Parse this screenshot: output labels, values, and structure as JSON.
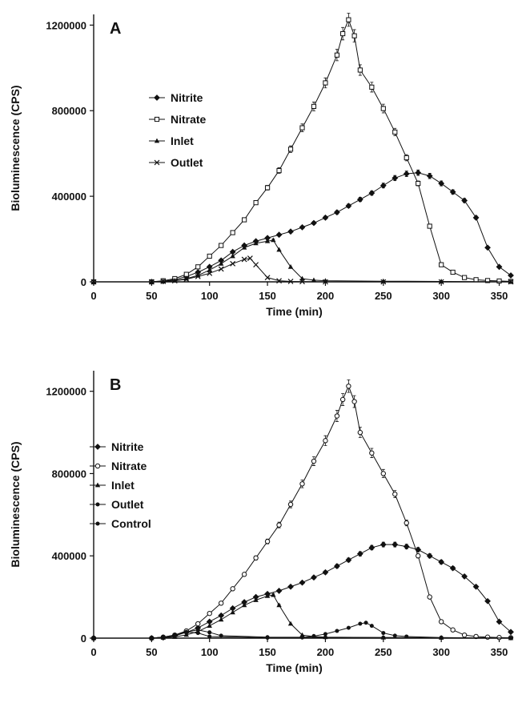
{
  "colors": {
    "ink": "#111111",
    "background": "#ffffff"
  },
  "chart_data": [
    {
      "type": "line",
      "panel_label": "A",
      "xlabel": "Time (min)",
      "ylabel": "Bioluminescence (CPS)",
      "xlim": [
        0,
        360
      ],
      "ylim": [
        0,
        1250000
      ],
      "xticks": [
        0,
        50,
        100,
        150,
        200,
        250,
        300,
        350
      ],
      "yticks": [
        0,
        400000,
        800000,
        1200000
      ],
      "grid": false,
      "legend_position": "top-left",
      "series": [
        {
          "name": "Nitrite",
          "marker": "filled-diamond",
          "x": [
            0,
            50,
            60,
            70,
            80,
            90,
            100,
            110,
            120,
            130,
            140,
            150,
            160,
            170,
            180,
            190,
            200,
            210,
            220,
            230,
            240,
            250,
            260,
            270,
            280,
            290,
            300,
            310,
            320,
            330,
            340,
            350,
            360
          ],
          "y": [
            0,
            0,
            3000,
            10000,
            25000,
            45000,
            70000,
            100000,
            140000,
            170000,
            190000,
            205000,
            220000,
            235000,
            255000,
            275000,
            300000,
            325000,
            355000,
            385000,
            415000,
            450000,
            485000,
            505000,
            510000,
            495000,
            460000,
            420000,
            380000,
            300000,
            160000,
            70000,
            30000
          ]
        },
        {
          "name": "Nitrate",
          "marker": "open-square",
          "x": [
            0,
            50,
            60,
            70,
            80,
            90,
            100,
            110,
            120,
            130,
            140,
            150,
            160,
            170,
            180,
            190,
            200,
            210,
            215,
            220,
            225,
            230,
            240,
            250,
            260,
            270,
            280,
            290,
            300,
            310,
            320,
            330,
            340,
            350,
            360
          ],
          "y": [
            0,
            0,
            5000,
            15000,
            35000,
            70000,
            120000,
            170000,
            230000,
            290000,
            370000,
            440000,
            520000,
            620000,
            720000,
            820000,
            930000,
            1060000,
            1160000,
            1225000,
            1150000,
            990000,
            910000,
            810000,
            700000,
            580000,
            460000,
            260000,
            80000,
            45000,
            20000,
            10000,
            6000,
            4000,
            2000
          ]
        },
        {
          "name": "Inlet",
          "marker": "filled-triangle",
          "x": [
            0,
            50,
            60,
            70,
            80,
            90,
            100,
            110,
            120,
            130,
            140,
            150,
            155,
            160,
            170,
            180,
            190,
            200,
            250,
            300,
            360
          ],
          "y": [
            0,
            0,
            2000,
            6000,
            15000,
            30000,
            55000,
            85000,
            120000,
            160000,
            180000,
            190000,
            195000,
            150000,
            70000,
            15000,
            8000,
            5000,
            3000,
            2000,
            0
          ]
        },
        {
          "name": "Outlet",
          "marker": "cross",
          "x": [
            0,
            50,
            60,
            70,
            80,
            90,
            100,
            110,
            120,
            130,
            135,
            140,
            150,
            160,
            170,
            180,
            200,
            250,
            300,
            360
          ],
          "y": [
            0,
            0,
            2000,
            5000,
            12000,
            25000,
            40000,
            60000,
            85000,
            105000,
            110000,
            80000,
            20000,
            5000,
            2000,
            1000,
            0,
            0,
            0,
            0
          ]
        }
      ]
    },
    {
      "type": "line",
      "panel_label": "B",
      "xlabel": "Time (min)",
      "ylabel": "Bioluminescence (CPS)",
      "xlim": [
        0,
        360
      ],
      "ylim": [
        0,
        1300000
      ],
      "xticks": [
        0,
        50,
        100,
        150,
        200,
        250,
        300,
        350
      ],
      "yticks": [
        0,
        400000,
        800000,
        1200000
      ],
      "grid": false,
      "legend_position": "top-left",
      "series": [
        {
          "name": "Nitrite",
          "marker": "filled-diamond",
          "x": [
            0,
            50,
            60,
            70,
            80,
            90,
            100,
            110,
            120,
            130,
            140,
            150,
            160,
            170,
            180,
            190,
            200,
            210,
            220,
            230,
            240,
            250,
            260,
            270,
            280,
            290,
            300,
            310,
            320,
            330,
            340,
            350,
            360
          ],
          "y": [
            0,
            0,
            3000,
            12000,
            28000,
            50000,
            80000,
            110000,
            145000,
            175000,
            200000,
            215000,
            230000,
            250000,
            270000,
            295000,
            320000,
            350000,
            380000,
            410000,
            440000,
            455000,
            455000,
            445000,
            430000,
            400000,
            370000,
            340000,
            300000,
            250000,
            180000,
            80000,
            30000
          ]
        },
        {
          "name": "Nitrate",
          "marker": "open-circle",
          "x": [
            0,
            50,
            60,
            70,
            80,
            90,
            100,
            110,
            120,
            130,
            140,
            150,
            160,
            170,
            180,
            190,
            200,
            210,
            215,
            220,
            225,
            230,
            240,
            250,
            260,
            270,
            280,
            290,
            300,
            310,
            320,
            330,
            340,
            350,
            360
          ],
          "y": [
            0,
            0,
            5000,
            15000,
            35000,
            70000,
            120000,
            170000,
            240000,
            310000,
            390000,
            470000,
            550000,
            650000,
            750000,
            860000,
            960000,
            1080000,
            1160000,
            1225000,
            1150000,
            1000000,
            900000,
            800000,
            700000,
            560000,
            400000,
            200000,
            80000,
            40000,
            15000,
            8000,
            5000,
            3000,
            2000
          ]
        },
        {
          "name": "Inlet",
          "marker": "filled-triangle",
          "x": [
            0,
            50,
            60,
            70,
            80,
            90,
            100,
            110,
            120,
            130,
            140,
            150,
            155,
            160,
            170,
            180,
            190,
            200,
            250,
            300,
            360
          ],
          "y": [
            0,
            0,
            2000,
            6000,
            16000,
            32000,
            60000,
            90000,
            125000,
            160000,
            185000,
            205000,
            210000,
            160000,
            70000,
            15000,
            8000,
            5000,
            3000,
            2000,
            0
          ]
        },
        {
          "name": "Outlet",
          "marker": "filled-circle",
          "x": [
            0,
            50,
            70,
            80,
            90,
            100,
            150,
            180,
            190,
            200,
            210,
            220,
            230,
            235,
            240,
            250,
            260,
            270,
            300,
            360
          ],
          "y": [
            0,
            0,
            10000,
            30000,
            25000,
            8000,
            2000,
            3000,
            10000,
            20000,
            35000,
            50000,
            70000,
            75000,
            60000,
            25000,
            12000,
            8000,
            3000,
            0
          ]
        },
        {
          "name": "Control",
          "marker": "filled-circle",
          "x": [
            0,
            50,
            60,
            70,
            80,
            90,
            100,
            110,
            150,
            200,
            250,
            300,
            360
          ],
          "y": [
            0,
            0,
            5000,
            15000,
            30000,
            40000,
            28000,
            12000,
            5000,
            4000,
            3000,
            2000,
            0
          ]
        }
      ]
    }
  ]
}
